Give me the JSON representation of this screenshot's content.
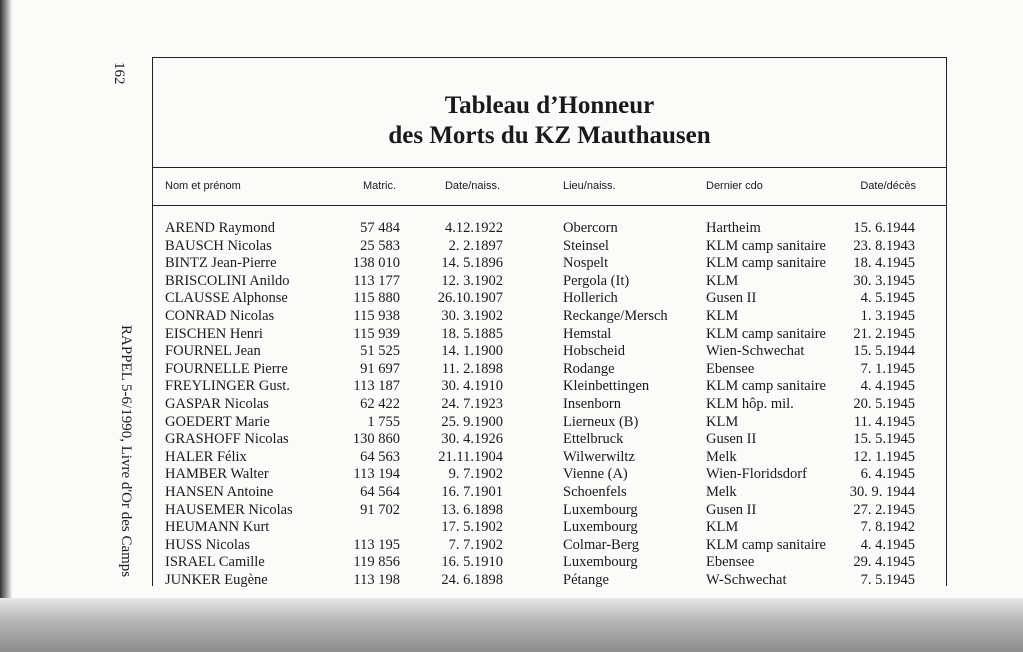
{
  "page_number": "162",
  "side_note": "RAPPEL 5-6/1990, Livre d'Or des Camps",
  "title": {
    "line1": "Tableau d’Honneur",
    "line2": "des Morts du KZ Mauthausen"
  },
  "table": {
    "headers": [
      "Nom et prénom",
      "Matric.",
      "Date/naiss.",
      "Lieu/naiss.",
      "Dernier cdo",
      "Date/décès"
    ],
    "rows": [
      [
        "AREND Raymond",
        "57 484",
        "4.12.1922",
        "Obercorn",
        "Hartheim",
        "15. 6.1944"
      ],
      [
        "BAUSCH Nicolas",
        "25 583",
        "2. 2.1897",
        "Steinsel",
        "KLM camp sanitaire",
        "23. 8.1943"
      ],
      [
        "BINTZ Jean-Pierre",
        "138 010",
        "14. 5.1896",
        "Nospelt",
        "KLM camp sanitaire",
        "18. 4.1945"
      ],
      [
        "BRISCOLINI Anildo",
        "113 177",
        "12. 3.1902",
        "Pergola (It)",
        "KLM",
        "30. 3.1945"
      ],
      [
        "CLAUSSE Alphonse",
        "115 880",
        "26.10.1907",
        "Hollerich",
        "Gusen II",
        "4. 5.1945"
      ],
      [
        "CONRAD Nicolas",
        "115 938",
        "30. 3.1902",
        "Reckange/Mersch",
        "KLM",
        "1. 3.1945"
      ],
      [
        "EISCHEN Henri",
        "115 939",
        "18. 5.1885",
        "Hemstal",
        "KLM camp sanitaire",
        "21. 2.1945"
      ],
      [
        "FOURNEL Jean",
        "51 525",
        "14. 1.1900",
        "Hobscheid",
        "Wien-Schwechat",
        "15. 5.1944"
      ],
      [
        "FOURNELLE Pierre",
        "91 697",
        "11. 2.1898",
        "Rodange",
        "Ebensee",
        "7. 1.1945"
      ],
      [
        "FREYLINGER Gust.",
        "113 187",
        "30. 4.1910",
        "Kleinbettingen",
        "KLM camp sanitaire",
        "4. 4.1945"
      ],
      [
        "GASPAR Nicolas",
        "62 422",
        "24. 7.1923",
        "Insenborn",
        "KLM hôp. mil.",
        "20. 5.1945"
      ],
      [
        "GOEDERT Marie",
        "1 755",
        "25. 9.1900",
        "Lierneux (B)",
        "KLM",
        "11. 4.1945"
      ],
      [
        "GRASHOFF Nicolas",
        "130 860",
        "30. 4.1926",
        "Ettelbruck",
        "Gusen II",
        "15. 5.1945"
      ],
      [
        "HALER Félix",
        "64 563",
        "21.11.1904",
        "Wilwerwiltz",
        "Melk",
        "12. 1.1945"
      ],
      [
        "HAMBER Walter",
        "113 194",
        "9. 7.1902",
        "Vienne (A)",
        "Wien-Floridsdorf",
        "6. 4.1945"
      ],
      [
        "HANSEN Antoine",
        "64 564",
        "16. 7.1901",
        "Schoenfels",
        "Melk",
        "30. 9. 1944"
      ],
      [
        "HAUSEMER Nicolas",
        "91 702",
        "13. 6.1898",
        "Luxembourg",
        "Gusen II",
        "27. 2.1945"
      ],
      [
        "HEUMANN Kurt",
        null,
        "17. 5.1902",
        "Luxembourg",
        "KLM",
        "7. 8.1942"
      ],
      [
        "HUSS Nicolas",
        "113 195",
        "7. 7.1902",
        "Colmar-Berg",
        "KLM camp sanitaire",
        "4. 4.1945"
      ],
      [
        "ISRAEL Camille",
        "119 856",
        "16. 5.1910",
        "Luxembourg",
        "Ebensee",
        "29. 4.1945"
      ],
      [
        "JUNKER Eugène",
        "113 198",
        "24. 6.1898",
        "Pétange",
        "W-Schwechat",
        "7. 5.1945"
      ]
    ]
  }
}
